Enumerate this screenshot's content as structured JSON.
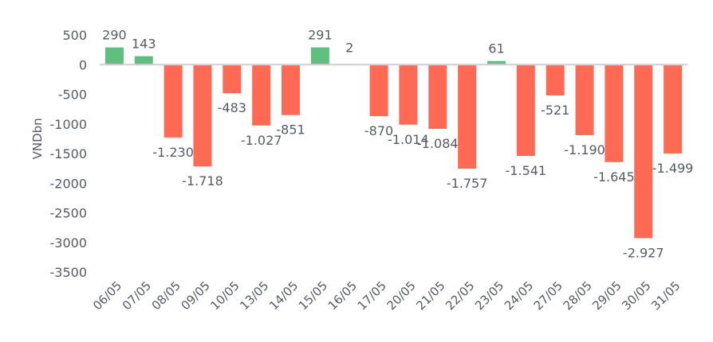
{
  "chart_data": {
    "type": "bar",
    "title": "",
    "xlabel": "",
    "ylabel": "VNDbn",
    "ylim": [
      -3500,
      500
    ],
    "yticks": [
      500,
      0,
      -500,
      -1000,
      -1500,
      -2000,
      -2500,
      -3000,
      -3500
    ],
    "ytick_labels": [
      "500",
      "0",
      "-500",
      "-1000",
      "-1500",
      "-2000",
      "-2500",
      "-3000",
      "-3500"
    ],
    "grid": false,
    "categories": [
      "06/05",
      "07/05",
      "08/05",
      "09/05",
      "10/05",
      "13/05",
      "14/05",
      "15/05",
      "16/05",
      "17/05",
      "20/05",
      "21/05",
      "22/05",
      "23/05",
      "24/05",
      "27/05",
      "28/05",
      "29/05",
      "30/05",
      "31/05"
    ],
    "values": [
      290,
      143,
      -1230,
      -1718,
      -483,
      -1027,
      -851,
      291,
      2,
      -870,
      -1014,
      -1084,
      -1757,
      61,
      -1541,
      -521,
      -1190,
      -1645,
      -2927,
      -1499
    ],
    "data_labels": [
      "290",
      "143",
      "-1.230",
      "-1.718",
      "-483",
      "-1.027",
      "-851",
      "291",
      "2",
      "-870",
      "-1.014",
      "-1.084",
      "-1.757",
      "61",
      "-1.541",
      "-521",
      "-1.190",
      "-1.645",
      "-2.927",
      "-1.499"
    ],
    "colors": {
      "positive": "#5fbf7f",
      "negative": "#ff6a55",
      "axis": "#cfcfcf",
      "text": "#555b66"
    }
  }
}
